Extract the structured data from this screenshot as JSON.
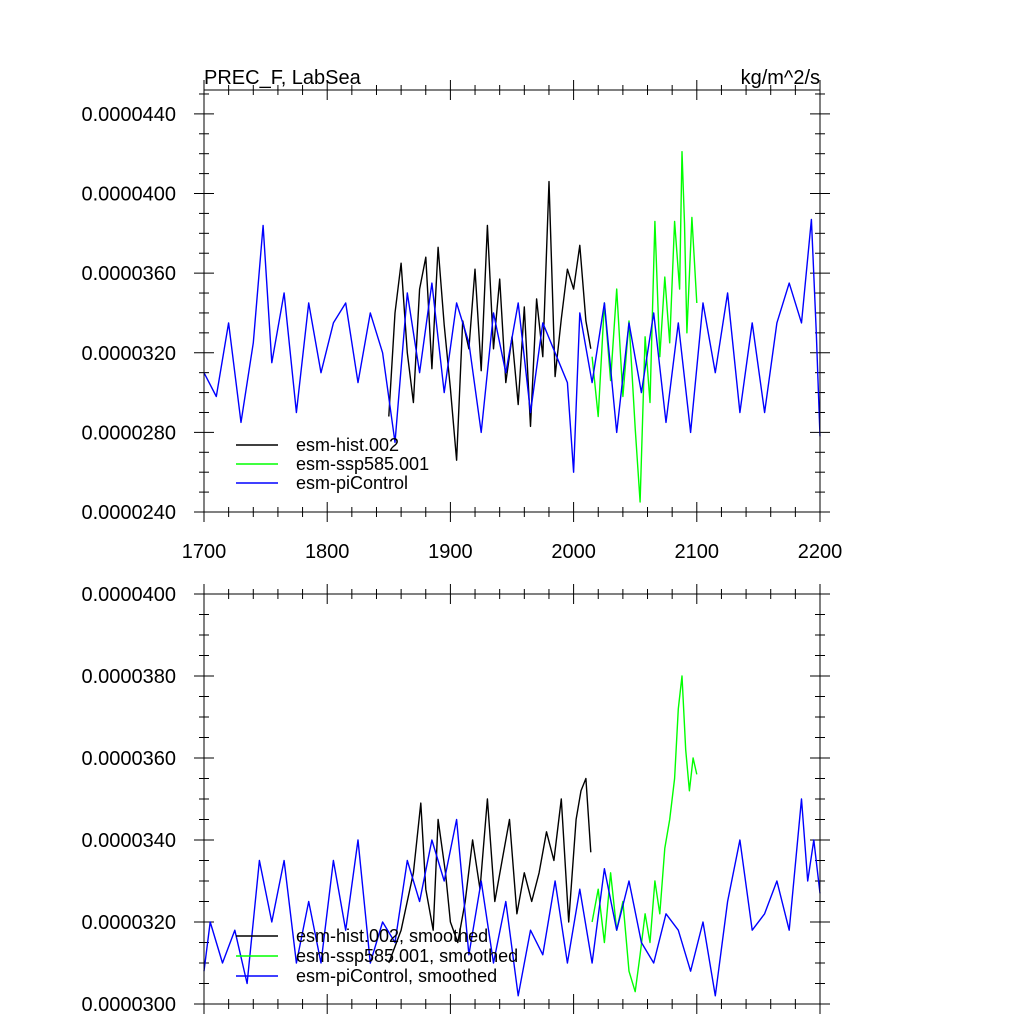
{
  "chart_data": [
    {
      "type": "line",
      "title": "PREC_F, LabSea",
      "units": "kg/m^2/s",
      "xlim": [
        1700,
        2200
      ],
      "ylim": [
        2.4e-05,
        4.52e-05
      ],
      "x_ticks": [
        1700,
        1800,
        1900,
        2000,
        2100,
        2200
      ],
      "x_tick_labels": [
        "1700",
        "1800",
        "1900",
        "2000",
        "2100",
        "2200"
      ],
      "y_ticks": [
        2.4e-05,
        2.8e-05,
        3.2e-05,
        3.6e-05,
        4e-05,
        4.4e-05
      ],
      "y_tick_labels": [
        "0.0000240",
        "0.0000280",
        "0.0000320",
        "0.0000360",
        "0.0000400",
        "0.0000440"
      ],
      "legend_position": "bottom-left",
      "series": [
        {
          "name": "esm-hist.002",
          "color": "#000000",
          "x": [
            1850,
            1855,
            1860,
            1865,
            1870,
            1875,
            1880,
            1885,
            1890,
            1895,
            1900,
            1905,
            1910,
            1915,
            1920,
            1925,
            1930,
            1935,
            1940,
            1945,
            1950,
            1955,
            1960,
            1965,
            1970,
            1975,
            1980,
            1985,
            1990,
            1995,
            2000,
            2005,
            2010,
            2014
          ],
          "y": [
            2.88e-05,
            3.4e-05,
            3.65e-05,
            3.2e-05,
            2.95e-05,
            3.52e-05,
            3.68e-05,
            3.12e-05,
            3.73e-05,
            3.34e-05,
            3.02e-05,
            2.66e-05,
            3.36e-05,
            3.22e-05,
            3.62e-05,
            3.11e-05,
            3.84e-05,
            3.22e-05,
            3.57e-05,
            3.05e-05,
            3.28e-05,
            2.94e-05,
            3.43e-05,
            2.83e-05,
            3.47e-05,
            3.18e-05,
            4.06e-05,
            3.08e-05,
            3.37e-05,
            3.62e-05,
            3.52e-05,
            3.74e-05,
            3.36e-05,
            3.22e-05
          ]
        },
        {
          "name": "esm-ssp585.001",
          "color": "#00ff00",
          "x": [
            2015,
            2020,
            2025,
            2030,
            2035,
            2040,
            2045,
            2050,
            2054,
            2058,
            2062,
            2066,
            2070,
            2074,
            2078,
            2082,
            2086,
            2088,
            2090,
            2092,
            2096,
            2100
          ],
          "y": [
            3.18e-05,
            2.88e-05,
            3.45e-05,
            3.06e-05,
            3.52e-05,
            2.98e-05,
            3.36e-05,
            2.82e-05,
            2.45e-05,
            3.28e-05,
            2.95e-05,
            3.86e-05,
            3.18e-05,
            3.58e-05,
            3.25e-05,
            3.86e-05,
            3.52e-05,
            4.21e-05,
            3.85e-05,
            3.3e-05,
            3.88e-05,
            3.45e-05
          ]
        },
        {
          "name": "esm-piControl",
          "color": "#0000ff",
          "x": [
            1700,
            1710,
            1720,
            1730,
            1740,
            1748,
            1755,
            1765,
            1775,
            1785,
            1795,
            1805,
            1815,
            1825,
            1835,
            1845,
            1855,
            1865,
            1875,
            1885,
            1895,
            1905,
            1915,
            1925,
            1935,
            1945,
            1955,
            1965,
            1975,
            1985,
            1995,
            2000,
            2005,
            2015,
            2025,
            2035,
            2045,
            2055,
            2065,
            2075,
            2085,
            2095,
            2105,
            2115,
            2125,
            2135,
            2145,
            2155,
            2165,
            2175,
            2185,
            2193,
            2197,
            2200
          ],
          "y": [
            3.1e-05,
            2.98e-05,
            3.35e-05,
            2.85e-05,
            3.25e-05,
            3.84e-05,
            3.15e-05,
            3.5e-05,
            2.9e-05,
            3.45e-05,
            3.1e-05,
            3.35e-05,
            3.45e-05,
            3.05e-05,
            3.4e-05,
            3.2e-05,
            2.75e-05,
            3.5e-05,
            3.1e-05,
            3.55e-05,
            3e-05,
            3.45e-05,
            3.25e-05,
            2.8e-05,
            3.4e-05,
            3.1e-05,
            3.45e-05,
            2.9e-05,
            3.35e-05,
            3.2e-05,
            3.05e-05,
            2.6e-05,
            3.4e-05,
            3.05e-05,
            3.45e-05,
            2.8e-05,
            3.35e-05,
            3e-05,
            3.4e-05,
            2.85e-05,
            3.35e-05,
            2.8e-05,
            3.45e-05,
            3.1e-05,
            3.5e-05,
            2.9e-05,
            3.35e-05,
            2.9e-05,
            3.35e-05,
            3.55e-05,
            3.35e-05,
            3.87e-05,
            3.3e-05,
            2.78e-05
          ]
        }
      ]
    },
    {
      "type": "line",
      "xlim": [
        1700,
        2200
      ],
      "ylim": [
        3e-05,
        4e-05
      ],
      "y_ticks": [
        3e-05,
        3.2e-05,
        3.4e-05,
        3.6e-05,
        3.8e-05,
        4e-05
      ],
      "y_tick_labels": [
        "0.0000300",
        "0.0000320",
        "0.0000340",
        "0.0000360",
        "0.0000380",
        "0.0000400"
      ],
      "legend_position": "bottom-left",
      "series": [
        {
          "name": "esm-hist.002, smoothed",
          "color": "#000000",
          "x": [
            1850,
            1860,
            1870,
            1876,
            1880,
            1886,
            1890,
            1896,
            1900,
            1906,
            1912,
            1918,
            1924,
            1930,
            1936,
            1942,
            1948,
            1954,
            1960,
            1966,
            1972,
            1978,
            1984,
            1990,
            1996,
            2002,
            2006,
            2010,
            2014
          ],
          "y": [
            3.1e-05,
            3.18e-05,
            3.32e-05,
            3.49e-05,
            3.28e-05,
            3.18e-05,
            3.45e-05,
            3.32e-05,
            3.2e-05,
            3.15e-05,
            3.25e-05,
            3.4e-05,
            3.28e-05,
            3.5e-05,
            3.25e-05,
            3.35e-05,
            3.45e-05,
            3.22e-05,
            3.32e-05,
            3.25e-05,
            3.32e-05,
            3.42e-05,
            3.35e-05,
            3.5e-05,
            3.2e-05,
            3.45e-05,
            3.52e-05,
            3.55e-05,
            3.37e-05
          ]
        },
        {
          "name": "esm-ssp585.001, smoothed",
          "color": "#00ff00",
          "x": [
            2015,
            2020,
            2025,
            2030,
            2035,
            2040,
            2045,
            2050,
            2054,
            2058,
            2062,
            2066,
            2070,
            2074,
            2078,
            2082,
            2085,
            2088,
            2091,
            2094,
            2097,
            2100
          ],
          "y": [
            3.2e-05,
            3.28e-05,
            3.15e-05,
            3.32e-05,
            3.18e-05,
            3.25e-05,
            3.08e-05,
            3.03e-05,
            3.12e-05,
            3.22e-05,
            3.15e-05,
            3.3e-05,
            3.22e-05,
            3.38e-05,
            3.45e-05,
            3.55e-05,
            3.72e-05,
            3.8e-05,
            3.62e-05,
            3.52e-05,
            3.6e-05,
            3.56e-05
          ]
        },
        {
          "name": "esm-piControl, smoothed",
          "color": "#0000ff",
          "x": [
            1700,
            1705,
            1715,
            1725,
            1735,
            1745,
            1755,
            1765,
            1775,
            1785,
            1795,
            1805,
            1815,
            1825,
            1835,
            1845,
            1855,
            1865,
            1875,
            1885,
            1895,
            1905,
            1915,
            1925,
            1935,
            1945,
            1955,
            1965,
            1975,
            1985,
            1995,
            2005,
            2015,
            2025,
            2035,
            2045,
            2055,
            2065,
            2075,
            2085,
            2095,
            2105,
            2115,
            2125,
            2135,
            2145,
            2155,
            2165,
            2175,
            2185,
            2190,
            2195,
            2200
          ],
          "y": [
            3.08e-05,
            3.2e-05,
            3.1e-05,
            3.18e-05,
            3.05e-05,
            3.35e-05,
            3.2e-05,
            3.35e-05,
            3.1e-05,
            3.25e-05,
            3.1e-05,
            3.35e-05,
            3.18e-05,
            3.4e-05,
            3.1e-05,
            3.2e-05,
            3.15e-05,
            3.35e-05,
            3.25e-05,
            3.4e-05,
            3.3e-05,
            3.45e-05,
            3.12e-05,
            3.3e-05,
            3.1e-05,
            3.25e-05,
            3.02e-05,
            3.18e-05,
            3.12e-05,
            3.3e-05,
            3.1e-05,
            3.28e-05,
            3.1e-05,
            3.33e-05,
            3.18e-05,
            3.3e-05,
            3.15e-05,
            3.1e-05,
            3.22e-05,
            3.18e-05,
            3.08e-05,
            3.2e-05,
            3.02e-05,
            3.25e-05,
            3.4e-05,
            3.18e-05,
            3.22e-05,
            3.3e-05,
            3.18e-05,
            3.5e-05,
            3.3e-05,
            3.4e-05,
            3.27e-05
          ]
        }
      ]
    }
  ]
}
